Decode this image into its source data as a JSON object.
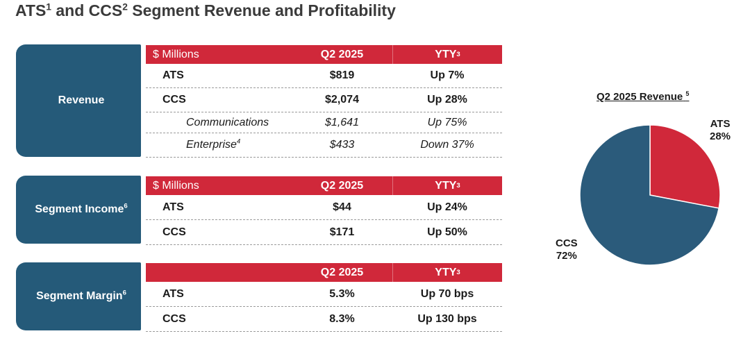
{
  "title": {
    "prefix": "ATS",
    "sup1": "1",
    "mid": " and CCS",
    "sup2": "2",
    "suffix": " Segment Revenue and Profitability"
  },
  "colors": {
    "brand_blue": "#255a79",
    "brand_red": "#d0283a"
  },
  "revenue": {
    "tab": "Revenue",
    "header": {
      "c0": "$ Millions",
      "c1": "Q2 2025",
      "c2": "YTY",
      "c2_sup": "3"
    },
    "rows": [
      {
        "label": "ATS",
        "value": "$819",
        "yty": "Up 7%"
      },
      {
        "label": "CCS",
        "value": "$2,074",
        "yty": "Up 28%"
      },
      {
        "label": "Communications",
        "value": "$1,641",
        "yty": "Up 75%"
      },
      {
        "label": "Enterprise",
        "label_sup": "4",
        "value": "$433",
        "yty": "Down 37%"
      }
    ]
  },
  "income": {
    "tab": "Segment Income",
    "tab_sup": "6",
    "header": {
      "c0": "$ Millions",
      "c1": "Q2 2025",
      "c2": "YTY",
      "c2_sup": "3"
    },
    "rows": [
      {
        "label": "ATS",
        "value": "$44",
        "yty": "Up 24%"
      },
      {
        "label": "CCS",
        "value": "$171",
        "yty": "Up 50%"
      }
    ]
  },
  "margin": {
    "tab": "Segment Margin",
    "tab_sup": "6",
    "header": {
      "c0": "",
      "c1": "Q2 2025",
      "c2": "YTY",
      "c2_sup": "3"
    },
    "rows": [
      {
        "label": "ATS",
        "value": "5.3%",
        "yty": "Up 70 bps"
      },
      {
        "label": "CCS",
        "value": "8.3%",
        "yty": "Up 130 bps"
      }
    ]
  },
  "chart_data": {
    "type": "pie",
    "title": "Q2 2025 Revenue",
    "title_sup": "5",
    "slices": [
      {
        "name": "ATS",
        "value": 28,
        "label": "28%",
        "color": "#d0283a"
      },
      {
        "name": "CCS",
        "value": 72,
        "label": "72%",
        "color": "#2b5b7b"
      }
    ]
  }
}
